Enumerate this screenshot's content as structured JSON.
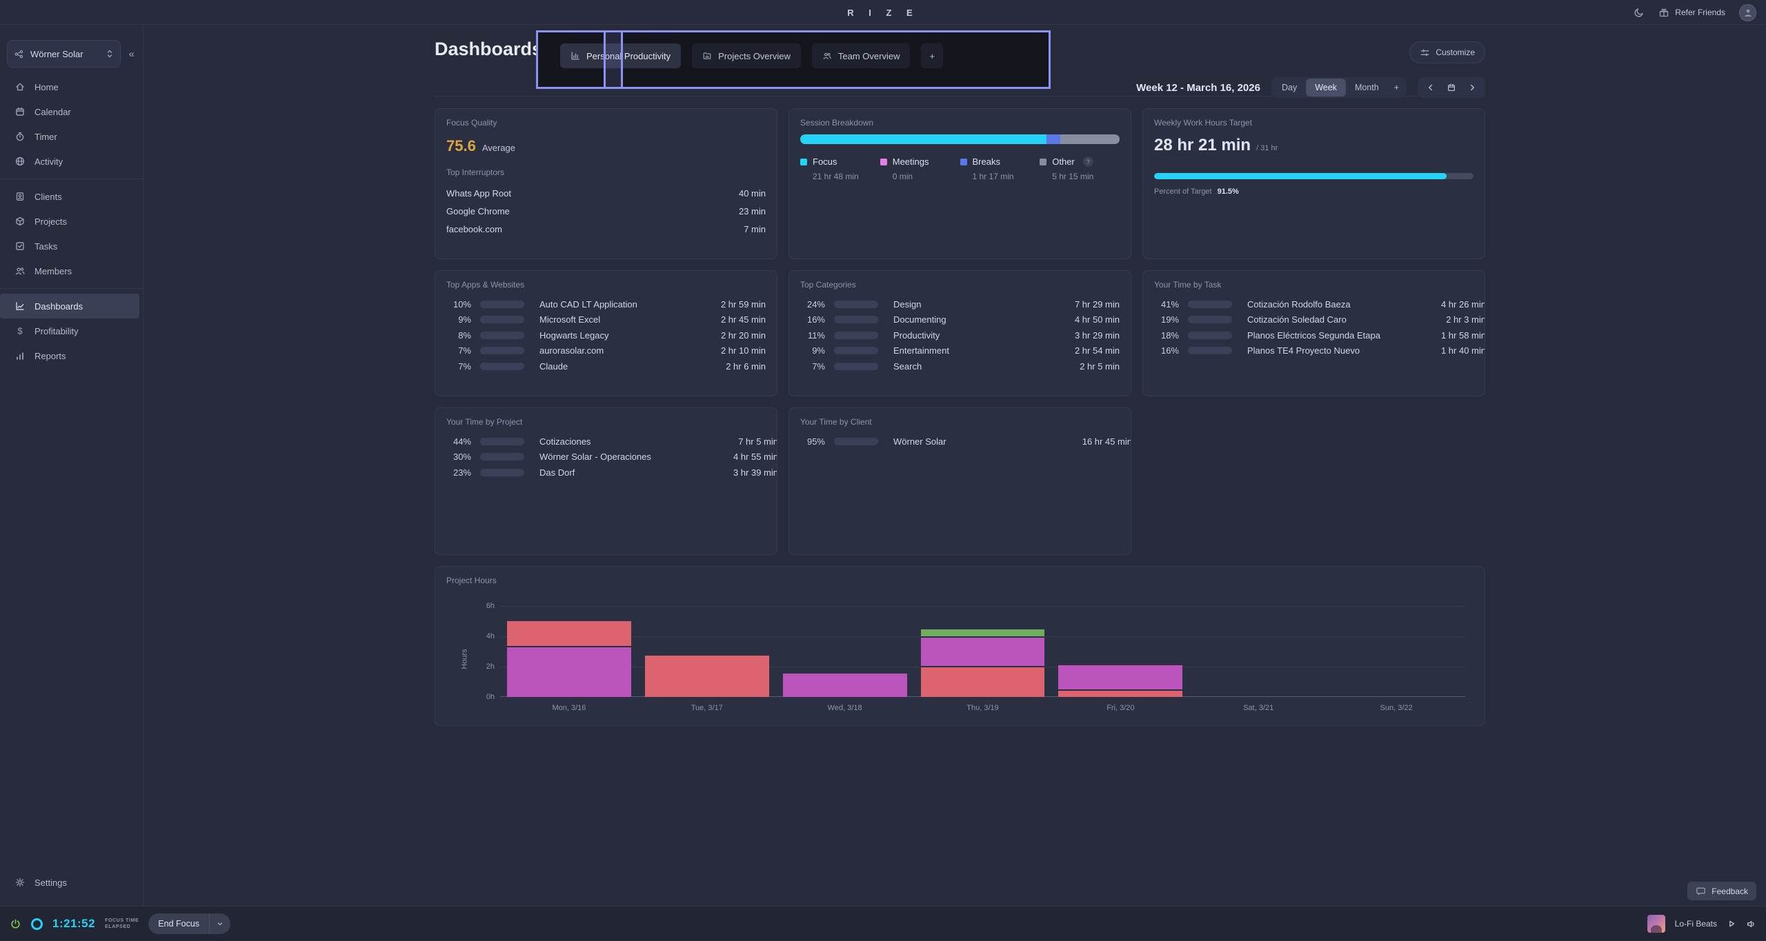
{
  "topbar": {
    "logo": "R I Z E",
    "refer_friends": "Refer Friends"
  },
  "sidebar": {
    "workspace": "Wörner Solar",
    "collapse_icon": "«",
    "items": [
      {
        "label": "Home"
      },
      {
        "label": "Calendar"
      },
      {
        "label": "Timer"
      },
      {
        "label": "Activity"
      },
      {
        "label": "Clients"
      },
      {
        "label": "Projects"
      },
      {
        "label": "Tasks"
      },
      {
        "label": "Members"
      },
      {
        "label": "Dashboards"
      },
      {
        "label": "Profitability"
      },
      {
        "label": "Reports"
      }
    ],
    "settings": "Settings"
  },
  "header": {
    "title": "Dashboards",
    "tabs": [
      {
        "label": "Personal Productivity"
      },
      {
        "label": "Projects Overview"
      },
      {
        "label": "Team Overview"
      },
      {
        "label": "+"
      }
    ],
    "customize": "Customize"
  },
  "daterange": {
    "label": "Week 12 - March 16, 2026",
    "segments": [
      {
        "label": "Day"
      },
      {
        "label": "Week"
      },
      {
        "label": "Month"
      },
      {
        "label": "+"
      }
    ],
    "active": "Week"
  },
  "cards": {
    "focus_quality": {
      "title": "Focus Quality",
      "value": "75.6",
      "value_color": "#dfa63f",
      "suffix": "Average",
      "subtitle": "Top Interruptors",
      "rows": [
        {
          "name": "Whats App Root",
          "time": "40 min"
        },
        {
          "name": "Google Chrome",
          "time": "23 min"
        },
        {
          "name": "facebook.com",
          "time": "7 min"
        }
      ]
    },
    "session": {
      "title": "Session Breakdown",
      "help": "?",
      "legend": [
        {
          "name": "Focus",
          "time": "21 hr 48 min",
          "color": "#24d3f5",
          "pct": "77"
        },
        {
          "name": "Meetings",
          "time": "0 min",
          "color": "#e57fe8",
          "pct": "0"
        },
        {
          "name": "Breaks",
          "time": "1 hr 17 min",
          "color": "#5b78e8",
          "pct": "4.5"
        },
        {
          "name": "Other",
          "time": "5 hr 15 min",
          "color": "#898e9f",
          "pct": "18.5"
        }
      ]
    },
    "target": {
      "title": "Weekly Work Hours Target",
      "value": "28 hr 21 min",
      "of_total": "/ 31 hr",
      "bar_color": "#24d3f5",
      "pct": "91.5%",
      "pct_label": "Percent of Target"
    },
    "apps": {
      "title": "Top Apps & Websites",
      "rows": [
        {
          "pct": "10%",
          "color": "#7d74e8",
          "name": "Auto CAD LT Application",
          "time": "2 hr 59 min"
        },
        {
          "pct": "9%",
          "color": "#7d74e8",
          "name": "Microsoft Excel",
          "time": "2 hr 45 min"
        },
        {
          "pct": "8%",
          "color": "#7d74e8",
          "name": "Hogwarts Legacy",
          "time": "2 hr 20 min"
        },
        {
          "pct": "7%",
          "color": "#7d74e8",
          "name": "aurorasolar.com",
          "time": "2 hr 10 min"
        },
        {
          "pct": "7%",
          "color": "#7d74e8",
          "name": "Claude",
          "time": "2 hr 6 min"
        }
      ]
    },
    "categories": {
      "title": "Top Categories",
      "rows": [
        {
          "pct": "24%",
          "color": "#7d74e8",
          "name": "Design",
          "time": "7 hr 29 min"
        },
        {
          "pct": "16%",
          "color": "#7d74e8",
          "name": "Documenting",
          "time": "4 hr 50 min"
        },
        {
          "pct": "11%",
          "color": "#7d74e8",
          "name": "Productivity",
          "time": "3 hr 29 min"
        },
        {
          "pct": "9%",
          "color": "#7d74e8",
          "name": "Entertainment",
          "time": "2 hr 54 min"
        },
        {
          "pct": "7%",
          "color": "#7d74e8",
          "name": "Search",
          "time": "2 hr 5 min"
        }
      ]
    },
    "tasks": {
      "title": "Your Time by Task",
      "rows": [
        {
          "pct": "41%",
          "color": "#b5835f",
          "name": "Cotización Rodolfo Baeza",
          "time": "4 hr 26 min"
        },
        {
          "pct": "19%",
          "color": "#6d7ca4",
          "name": "Cotización Soledad Caro",
          "time": "2 hr 3 min"
        },
        {
          "pct": "18%",
          "color": "#6d7ca4",
          "name": "Planos Eléctricos Segunda Etapa",
          "time": "1 hr 58 min"
        },
        {
          "pct": "16%",
          "color": "#3f69b5",
          "name": "Planos TE4 Proyecto Nuevo",
          "time": "1 hr 40 min"
        }
      ]
    },
    "projects": {
      "title": "Your Time by Project",
      "rows": [
        {
          "pct": "44%",
          "color": "#e06671",
          "name": "Cotizaciones",
          "time": "7 hr 5 min"
        },
        {
          "pct": "30%",
          "color": "#bb57c4",
          "name": "Wörner Solar - Operaciones",
          "time": "4 hr 55 min"
        },
        {
          "pct": "23%",
          "color": "#ab51c9",
          "name": "Das Dorf",
          "time": "3 hr 39 min"
        }
      ]
    },
    "clients": {
      "title": "Your Time by Client",
      "rows": [
        {
          "pct": "95%",
          "color": "#f08abd",
          "name": "Wörner Solar",
          "time": "16 hr 45 min"
        }
      ]
    }
  },
  "chart_data": {
    "type": "stacked-bar",
    "title": "Project Hours",
    "ylabel": "Hours",
    "yticks": [
      "0h",
      "2h",
      "4h",
      "6h"
    ],
    "ylim": [
      0,
      6
    ],
    "grid": true,
    "categories": [
      "Mon, 3/16",
      "Tue, 3/17",
      "Wed, 3/18",
      "Thu, 3/19",
      "Fri, 3/20",
      "Sat, 3/21",
      "Sun, 3/22"
    ],
    "stacks": [
      [
        {
          "color": "#bb55bd",
          "value": 3.35
        },
        {
          "color": "#dd6370",
          "value": 1.65
        }
      ],
      [
        {
          "color": "#dd6370",
          "value": 2.75
        }
      ],
      [
        {
          "color": "#bb55bd",
          "value": 1.55
        }
      ],
      [
        {
          "color": "#dd6370",
          "value": 2.05
        },
        {
          "color": "#bb55bd",
          "value": 1.95
        },
        {
          "color": "#6fae5d",
          "value": 0.45
        }
      ],
      [
        {
          "color": "#dd6370",
          "value": 0.5
        },
        {
          "color": "#bb55bd",
          "value": 1.6
        }
      ],
      [],
      []
    ]
  },
  "bottombar": {
    "timer": "1:21:52",
    "elapsed_line1": "FOCUS TIME",
    "elapsed_line2": "ELAPSED",
    "end_focus": "End Focus",
    "music_title": "Lo-Fi Beats",
    "feedback": "Feedback"
  }
}
